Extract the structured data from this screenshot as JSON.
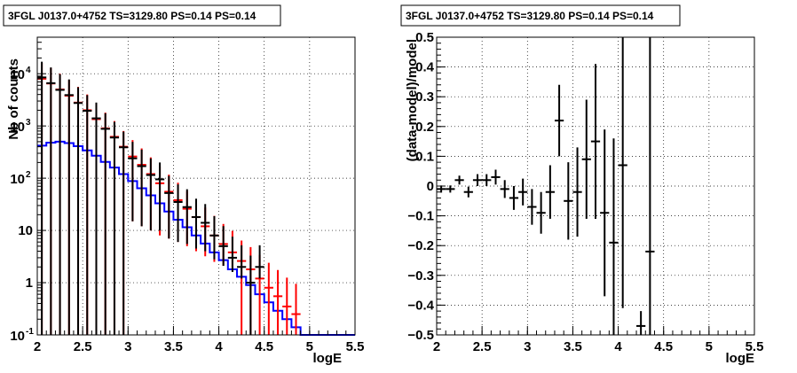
{
  "chart_data": [
    {
      "type": "histogram",
      "title": "3FGL J0137.0+4752 TS=3129.80 PS=0.14 PS=0.14",
      "xlabel": "logE",
      "ylabel": "Nb of counts",
      "xlim": [
        2,
        5.5
      ],
      "ylim": [
        0.1,
        50000
      ],
      "yscale": "log",
      "grid": true,
      "x_ticks": [
        "2",
        "2.5",
        "3",
        "3.5",
        "4",
        "4.5",
        "5",
        "5.5"
      ],
      "y_ticks": [
        {
          "value": 0.1,
          "base": "10",
          "exp": "-1",
          "plain": ""
        },
        {
          "value": 1,
          "base": "",
          "exp": "",
          "plain": "1"
        },
        {
          "value": 10,
          "base": "",
          "exp": "",
          "plain": "10"
        },
        {
          "value": 100,
          "base": "10",
          "exp": "2",
          "plain": ""
        },
        {
          "value": 1000,
          "base": "10",
          "exp": "3",
          "plain": ""
        },
        {
          "value": 10000,
          "base": "10",
          "exp": "4",
          "plain": ""
        }
      ],
      "series": [
        {
          "color": "#0000ff",
          "style": "step",
          "bin_width": 0.1,
          "x": [
            2.0,
            2.1,
            2.2,
            2.3,
            2.4,
            2.5,
            2.6,
            2.7,
            2.8,
            2.9,
            3.0,
            3.1,
            3.2,
            3.3,
            3.4,
            3.5,
            3.6,
            3.7,
            3.8,
            3.9,
            4.0,
            4.1,
            4.2,
            4.3,
            4.4,
            4.5,
            4.6,
            4.7,
            4.8,
            4.9,
            5.0,
            5.1,
            5.2,
            5.3,
            5.4
          ],
          "values": [
            420,
            480,
            500,
            470,
            410,
            340,
            270,
            205,
            160,
            120,
            88,
            64,
            47,
            33,
            23,
            16,
            11.5,
            8,
            5.6,
            3.8,
            2.7,
            1.8,
            1.3,
            0.9,
            0.6,
            0.42,
            0.29,
            0.2,
            0.14,
            0.1,
            0.1,
            0.1,
            0.1,
            0.1,
            0.1
          ]
        },
        {
          "color": "#ff0000",
          "style": "errorbar",
          "x": [
            2.05,
            2.15,
            2.25,
            2.35,
            2.45,
            2.55,
            2.65,
            2.75,
            2.85,
            2.95,
            3.05,
            3.15,
            3.25,
            3.35,
            3.45,
            3.55,
            3.65,
            3.75,
            3.85,
            3.95,
            4.05,
            4.15,
            4.25,
            4.35,
            4.45,
            4.55,
            4.65,
            4.75,
            4.85
          ],
          "values": [
            8000,
            6500,
            5000,
            3800,
            2800,
            2000,
            1350,
            900,
            620,
            400,
            260,
            180,
            120,
            80,
            55,
            38,
            26,
            18,
            12,
            8,
            5.5,
            3.8,
            2.6,
            1.8,
            1.2,
            0.8,
            0.55,
            0.35,
            0.25
          ],
          "err_lo": [
            8000,
            6500,
            5000,
            3800,
            2800,
            2000,
            1350,
            900,
            620,
            400,
            245,
            168,
            110,
            72,
            48,
            32,
            21,
            14,
            8.8,
            5.5,
            3.4,
            2.0,
            2.6,
            1.8,
            1.2,
            0.8,
            0.55,
            0.35,
            0.25
          ],
          "err_hi": [
            8000,
            6500,
            5000,
            3800,
            2800,
            2000,
            1350,
            900,
            620,
            400,
            275,
            192,
            130,
            88,
            62,
            44,
            31,
            22,
            15.5,
            11,
            7.8,
            6,
            3.8,
            3,
            2.2,
            1.6,
            1.2,
            0.9,
            0.7
          ]
        },
        {
          "color": "#000000",
          "style": "errorbar",
          "x": [
            2.05,
            2.15,
            2.25,
            2.35,
            2.45,
            2.55,
            2.65,
            2.75,
            2.85,
            2.95,
            3.05,
            3.15,
            3.25,
            3.35,
            3.45,
            3.55,
            3.65,
            3.75,
            3.85,
            3.95,
            4.05,
            4.15,
            4.25,
            4.35,
            4.45
          ],
          "values": [
            8500,
            6600,
            4900,
            3900,
            2750,
            1950,
            1400,
            880,
            600,
            390,
            240,
            170,
            115,
            95,
            52,
            35,
            28,
            18,
            14,
            8,
            5,
            3,
            2,
            1,
            2
          ],
          "err_lo": [
            8500,
            6600,
            4900,
            3900,
            2750,
            1950,
            1400,
            880,
            600,
            390,
            225,
            158,
            105,
            85,
            45,
            29,
            22.5,
            13.5,
            10,
            5.2,
            2.9,
            1.4,
            0.8,
            1,
            0.8
          ],
          "err_hi": [
            8500,
            6600,
            4900,
            3900,
            2750,
            1950,
            1400,
            880,
            600,
            390,
            255,
            182,
            125,
            105,
            59,
            41,
            33.5,
            22.5,
            18,
            10.8,
            7.1,
            4.6,
            3.2,
            2.3,
            3.2
          ]
        }
      ]
    },
    {
      "type": "scatter",
      "title": "3FGL J0137.0+4752 TS=3129.80 PS=0.14 PS=0.14",
      "xlabel": "logE",
      "ylabel": "(data-model)/model",
      "xlim": [
        2,
        5.5
      ],
      "ylim": [
        -0.5,
        0.5
      ],
      "grid": true,
      "x_ticks": [
        "2",
        "2.5",
        "3",
        "3.5",
        "4",
        "4.5",
        "5",
        "5.5"
      ],
      "y_ticks": [
        {
          "value": -0.5,
          "label": "−0.5"
        },
        {
          "value": -0.4,
          "label": "−0.4"
        },
        {
          "value": -0.3,
          "label": "−0.3"
        },
        {
          "value": -0.2,
          "label": "−0.2"
        },
        {
          "value": -0.1,
          "label": "−0.1"
        },
        {
          "value": 0,
          "label": "0"
        },
        {
          "value": 0.1,
          "label": "0.1"
        },
        {
          "value": 0.2,
          "label": "0.2"
        },
        {
          "value": 0.3,
          "label": "0.3"
        },
        {
          "value": 0.4,
          "label": "0.4"
        },
        {
          "value": 0.5,
          "label": "0.5"
        }
      ],
      "series": [
        {
          "color": "#000000",
          "style": "errorbar",
          "x": [
            2.05,
            2.15,
            2.25,
            2.35,
            2.45,
            2.55,
            2.65,
            2.75,
            2.85,
            2.95,
            3.05,
            3.15,
            3.25,
            3.35,
            3.45,
            3.55,
            3.65,
            3.75,
            3.85,
            3.95,
            4.05,
            4.25,
            4.35
          ],
          "values": [
            -0.01,
            -0.01,
            0.02,
            -0.02,
            0.02,
            0.02,
            0.03,
            -0.01,
            -0.04,
            -0.02,
            -0.07,
            -0.09,
            -0.02,
            0.22,
            -0.05,
            -0.02,
            0.09,
            0.15,
            -0.09,
            -0.19,
            0.07,
            -0.47,
            -0.22
          ],
          "err": [
            0.012,
            0.012,
            0.015,
            0.018,
            0.02,
            0.02,
            0.025,
            0.03,
            0.04,
            0.045,
            0.06,
            0.07,
            0.09,
            0.12,
            0.13,
            0.15,
            0.2,
            0.26,
            0.28,
            0.35,
            0.48,
            0.05,
            0.75
          ]
        }
      ]
    }
  ]
}
